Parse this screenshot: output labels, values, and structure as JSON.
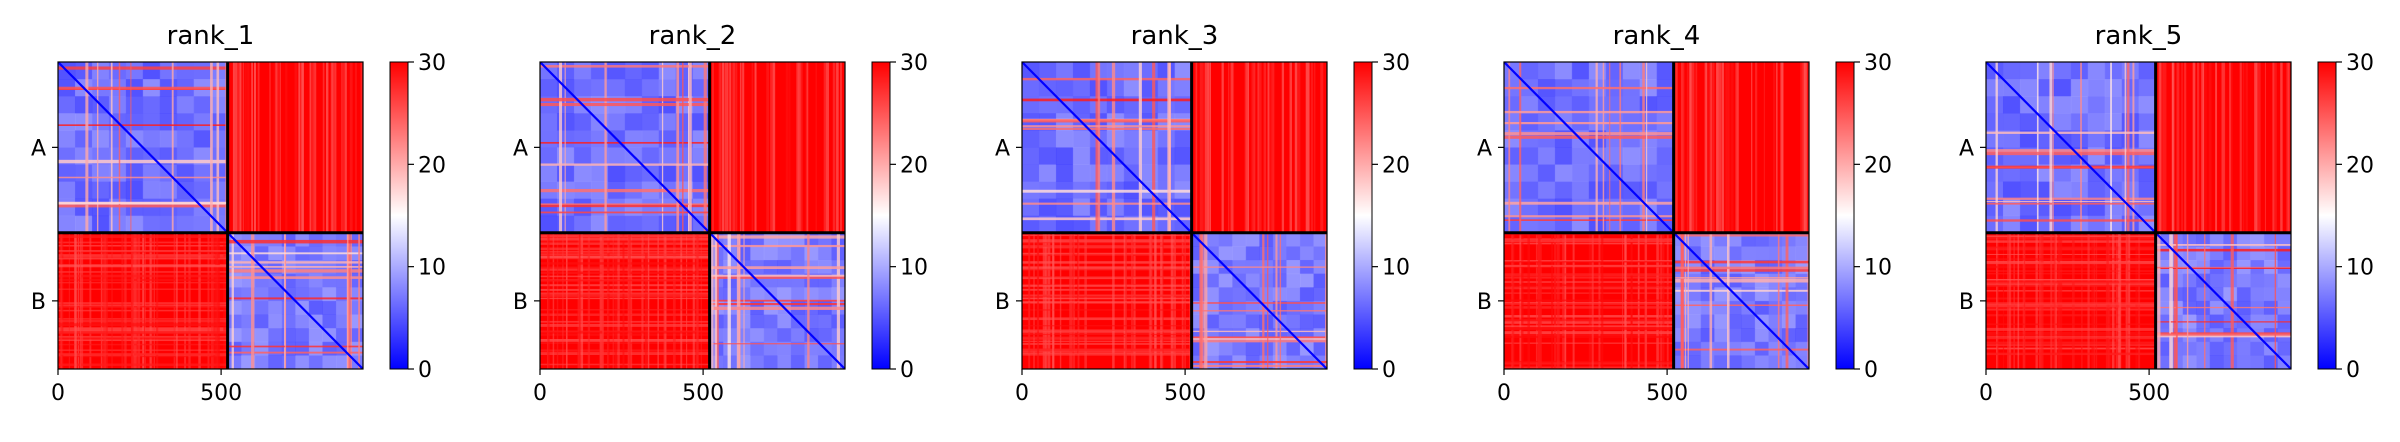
{
  "chart_data": [
    {
      "type": "heatmap",
      "title": "rank_1",
      "chain_labels": [
        "A",
        "B"
      ],
      "chain_boundary": 520,
      "n_residues": 935,
      "x_ticks": [
        0,
        500
      ],
      "x_tick_labels": [
        "0",
        "500"
      ],
      "colorbar": {
        "colormap": "bwr",
        "min": 0,
        "max": 30,
        "ticks": [
          0,
          10,
          20,
          30
        ],
        "tick_labels": [
          "0",
          "10",
          "20",
          "30"
        ]
      },
      "grid": false
    },
    {
      "type": "heatmap",
      "title": "rank_2",
      "chain_labels": [
        "A",
        "B"
      ],
      "chain_boundary": 520,
      "n_residues": 935,
      "x_ticks": [
        0,
        500
      ],
      "x_tick_labels": [
        "0",
        "500"
      ],
      "colorbar": {
        "colormap": "bwr",
        "min": 0,
        "max": 30,
        "ticks": [
          0,
          10,
          20,
          30
        ],
        "tick_labels": [
          "0",
          "10",
          "20",
          "30"
        ]
      },
      "grid": false
    },
    {
      "type": "heatmap",
      "title": "rank_3",
      "chain_labels": [
        "A",
        "B"
      ],
      "chain_boundary": 520,
      "n_residues": 935,
      "x_ticks": [
        0,
        500
      ],
      "x_tick_labels": [
        "0",
        "500"
      ],
      "colorbar": {
        "colormap": "bwr",
        "min": 0,
        "max": 30,
        "ticks": [
          0,
          10,
          20,
          30
        ],
        "tick_labels": [
          "0",
          "10",
          "20",
          "30"
        ]
      },
      "grid": false
    },
    {
      "type": "heatmap",
      "title": "rank_4",
      "chain_labels": [
        "A",
        "B"
      ],
      "chain_boundary": 520,
      "n_residues": 935,
      "x_ticks": [
        0,
        500
      ],
      "x_tick_labels": [
        "0",
        "500"
      ],
      "colorbar": {
        "colormap": "bwr",
        "min": 0,
        "max": 30,
        "ticks": [
          0,
          10,
          20,
          30
        ],
        "tick_labels": [
          "0",
          "10",
          "20",
          "30"
        ]
      },
      "grid": false
    },
    {
      "type": "heatmap",
      "title": "rank_5",
      "chain_labels": [
        "A",
        "B"
      ],
      "chain_boundary": 520,
      "n_residues": 935,
      "x_ticks": [
        0,
        500
      ],
      "x_tick_labels": [
        "0",
        "500"
      ],
      "colorbar": {
        "colormap": "bwr",
        "min": 0,
        "max": 30,
        "ticks": [
          0,
          10,
          20,
          30
        ],
        "tick_labels": [
          "0",
          "10",
          "20",
          "30"
        ]
      },
      "grid": false
    }
  ]
}
